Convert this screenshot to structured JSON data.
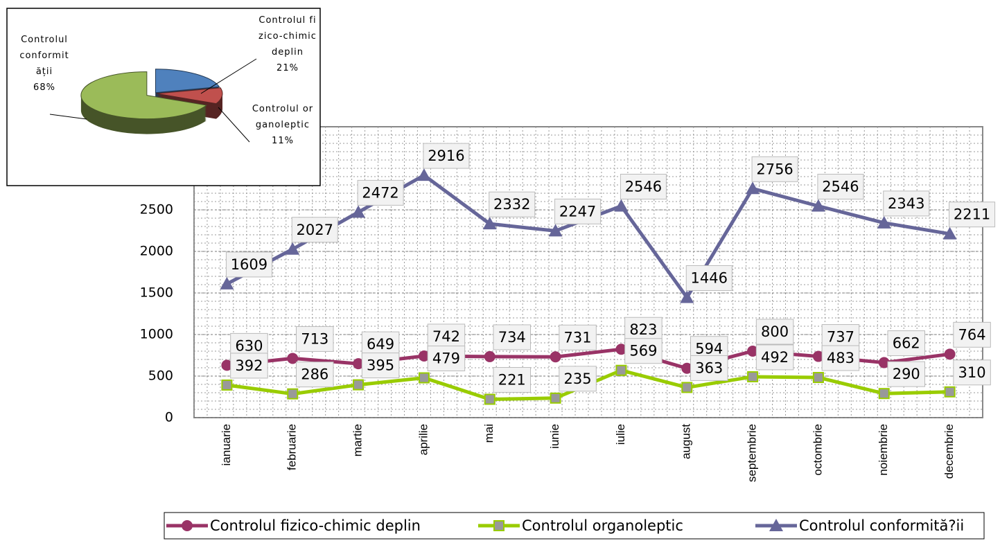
{
  "chart_data": [
    {
      "type": "line",
      "categories": [
        "ianuarie",
        "februarie",
        "martie",
        "aprilie",
        "mai",
        "iunie",
        "iulie",
        "august",
        "septembrie",
        "octombrie",
        "noiembrie",
        "decembrie"
      ],
      "series": [
        {
          "name": "Controlul fizico-chimic deplin",
          "color": "#993366",
          "marker": "circle",
          "values": [
            630,
            713,
            649,
            742,
            734,
            731,
            823,
            594,
            800,
            737,
            662,
            764
          ]
        },
        {
          "name": "Controlul organoleptic",
          "color": "#99cc00",
          "marker": "square",
          "values": [
            392,
            286,
            395,
            479,
            221,
            235,
            569,
            363,
            492,
            483,
            290,
            310
          ]
        },
        {
          "name": "Controlul conformită?ii",
          "color": "#666699",
          "marker": "triangle",
          "values": [
            1609,
            2027,
            2472,
            2916,
            2332,
            2247,
            2546,
            1446,
            2756,
            2546,
            2343,
            2211
          ]
        }
      ],
      "ylim": [
        0,
        3500
      ],
      "yticks": [
        0,
        500,
        1000,
        1500,
        2000,
        2500
      ],
      "grid": true,
      "legend": "bottom"
    },
    {
      "type": "pie",
      "categories": [
        "Controlul fizico-chimic deplin",
        "Controlul organoleptic",
        "Controlul conformității"
      ],
      "values": [
        21,
        11,
        68
      ],
      "value_labels": [
        "21%",
        "11%",
        "68%"
      ],
      "colors": [
        "#4f81bd",
        "#c0504d",
        "#9bbb59"
      ]
    }
  ]
}
